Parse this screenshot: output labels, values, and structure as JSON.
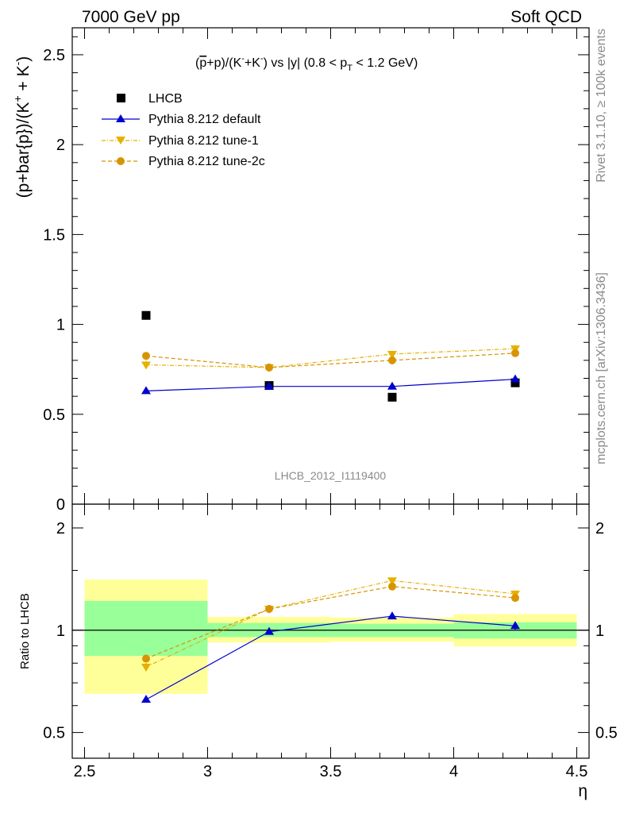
{
  "header": {
    "energy_label": "7000 GeV pp",
    "process_label": "Soft QCD"
  },
  "side_labels": {
    "rivet": "Rivet 3.1.10, ≥ 100k events",
    "site": "mcplots.cern.ch [arXiv:1306.3436]"
  },
  "chart_data": [
    {
      "type": "scatter",
      "title_parts": {
        "a": "(",
        "pbar": "p",
        "b": "+p)/(K",
        "sup1": "-",
        "c": "+K",
        "sup2": "-",
        "d": ") vs |y| (0.8 < p",
        "sub": "T",
        "e": " < 1.2 GeV)"
      },
      "ylabel_parts": {
        "main": "(p+bar{p})/(K",
        "sup1": "+",
        "mid": " + K",
        "sup2": "-",
        "end": ")"
      },
      "analysis_label": "LHCB_2012_I1119400",
      "ylim": [
        0,
        2.65
      ],
      "xlim": [
        2.45,
        4.55
      ],
      "y_ticks": [
        {
          "value": 0.5,
          "label": "0.5"
        },
        {
          "value": 1,
          "label": "1"
        },
        {
          "value": 1.5,
          "label": "1.5"
        },
        {
          "value": 2,
          "label": "2"
        },
        {
          "value": 2.5,
          "label": "2.5"
        }
      ],
      "zero_label": "0",
      "x_centers": [
        2.75,
        3.25,
        3.75,
        4.25
      ],
      "legend": [
        {
          "key": "data",
          "label": "LHCB"
        },
        {
          "key": "default",
          "label": "Pythia 8.212 default"
        },
        {
          "key": "tune1",
          "label": "Pythia 8.212 tune-1"
        },
        {
          "key": "tune2c",
          "label": "Pythia 8.212 tune-2c"
        }
      ],
      "series": [
        {
          "key": "data",
          "name": "LHCB",
          "color": "#000000",
          "values": [
            1.05,
            0.66,
            0.595,
            0.675
          ]
        },
        {
          "key": "default",
          "name": "Pythia 8.212 default",
          "color": "#0000cc",
          "values": [
            0.63,
            0.655,
            0.655,
            0.695
          ],
          "errors": [
            0.008,
            0.01,
            0.01,
            0.02
          ]
        },
        {
          "key": "tune1",
          "name": "Pythia 8.212 tune-1",
          "color": "#e6b000",
          "values": [
            0.775,
            0.76,
            0.835,
            0.865
          ],
          "errors": [
            0.022,
            0.015,
            0.018,
            0.02
          ]
        },
        {
          "key": "tune2c",
          "name": "Pythia 8.212 tune-2c",
          "color": "#d89400",
          "values": [
            0.825,
            0.76,
            0.8,
            0.84
          ],
          "errors": [
            0.02,
            0.015,
            0.018,
            0.02
          ]
        }
      ]
    },
    {
      "type": "scatter",
      "ylabel": "Ratio to LHCB",
      "xlabel": "η",
      "y_scale": "log",
      "ylim": [
        0.42,
        2.35
      ],
      "xlim": [
        2.45,
        4.55
      ],
      "y_ticks": [
        {
          "value": 0.5,
          "label": "0.5"
        },
        {
          "value": 1,
          "label": "1"
        },
        {
          "value": 2,
          "label": "2"
        }
      ],
      "x_ticks": [
        {
          "value": 2.5,
          "label": "2.5"
        },
        {
          "value": 3,
          "label": "3"
        },
        {
          "value": 3.5,
          "label": "3.5"
        },
        {
          "value": 4,
          "label": "4"
        },
        {
          "value": 4.5,
          "label": "4.5"
        }
      ],
      "x_centers": [
        2.75,
        3.25,
        3.75,
        4.25
      ],
      "bins": [
        [
          2.5,
          3.0
        ],
        [
          3.0,
          3.5
        ],
        [
          3.5,
          4.0
        ],
        [
          4.0,
          4.5
        ]
      ],
      "band_stat": [
        [
          0.84,
          1.22
        ],
        [
          0.955,
          1.05
        ],
        [
          0.955,
          1.045
        ],
        [
          0.945,
          1.055
        ]
      ],
      "band_total": [
        [
          0.65,
          1.41
        ],
        [
          0.92,
          1.095
        ],
        [
          0.925,
          1.09
        ],
        [
          0.895,
          1.115
        ]
      ],
      "band_colors": {
        "stat": "#99ff99",
        "total": "#ffff99"
      },
      "series": [
        {
          "key": "default",
          "name": "Pythia 8.212 default",
          "color": "#0000cc",
          "values": [
            0.625,
            0.99,
            1.1,
            1.03
          ],
          "errors": [
            0.008,
            0.015,
            0.018,
            0.03
          ]
        },
        {
          "key": "tune1",
          "name": "Pythia 8.212 tune-1",
          "color": "#e6b000",
          "values": [
            0.78,
            1.155,
            1.4,
            1.28
          ],
          "errors": [
            0.022,
            0.02,
            0.025,
            0.03
          ]
        },
        {
          "key": "tune2c",
          "name": "Pythia 8.212 tune-2c",
          "color": "#d89400",
          "values": [
            0.825,
            1.155,
            1.345,
            1.245
          ],
          "errors": [
            0.02,
            0.02,
            0.025,
            0.03
          ]
        }
      ]
    }
  ]
}
